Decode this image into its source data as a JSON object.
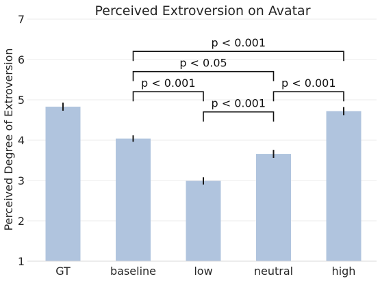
{
  "chart_data": {
    "type": "bar",
    "title": "Perceived Extroversion on Avatar",
    "xlabel": "",
    "ylabel": "Perceived Degree of Extroversion",
    "categories": [
      "GT",
      "baseline",
      "low",
      "neutral",
      "high"
    ],
    "values": [
      4.83,
      4.04,
      2.99,
      3.66,
      4.72
    ],
    "errors": [
      0.1,
      0.08,
      0.09,
      0.1,
      0.1
    ],
    "ylim": [
      1,
      7
    ],
    "yticks": [
      1,
      2,
      3,
      4,
      5,
      6,
      7
    ],
    "grid": true,
    "bar_color": "#b0c4de",
    "significance": [
      {
        "from": "baseline",
        "to": "low",
        "label": "p < 0.001",
        "level": 5.2
      },
      {
        "from": "low",
        "to": "neutral",
        "label": "p < 0.001",
        "level": 4.7
      },
      {
        "from": "neutral",
        "to": "high",
        "label": "p < 0.001",
        "level": 5.2
      },
      {
        "from": "baseline",
        "to": "neutral",
        "label": "p < 0.05",
        "level": 5.7
      },
      {
        "from": "baseline",
        "to": "high",
        "label": "p < 0.001",
        "level": 6.2
      }
    ]
  }
}
